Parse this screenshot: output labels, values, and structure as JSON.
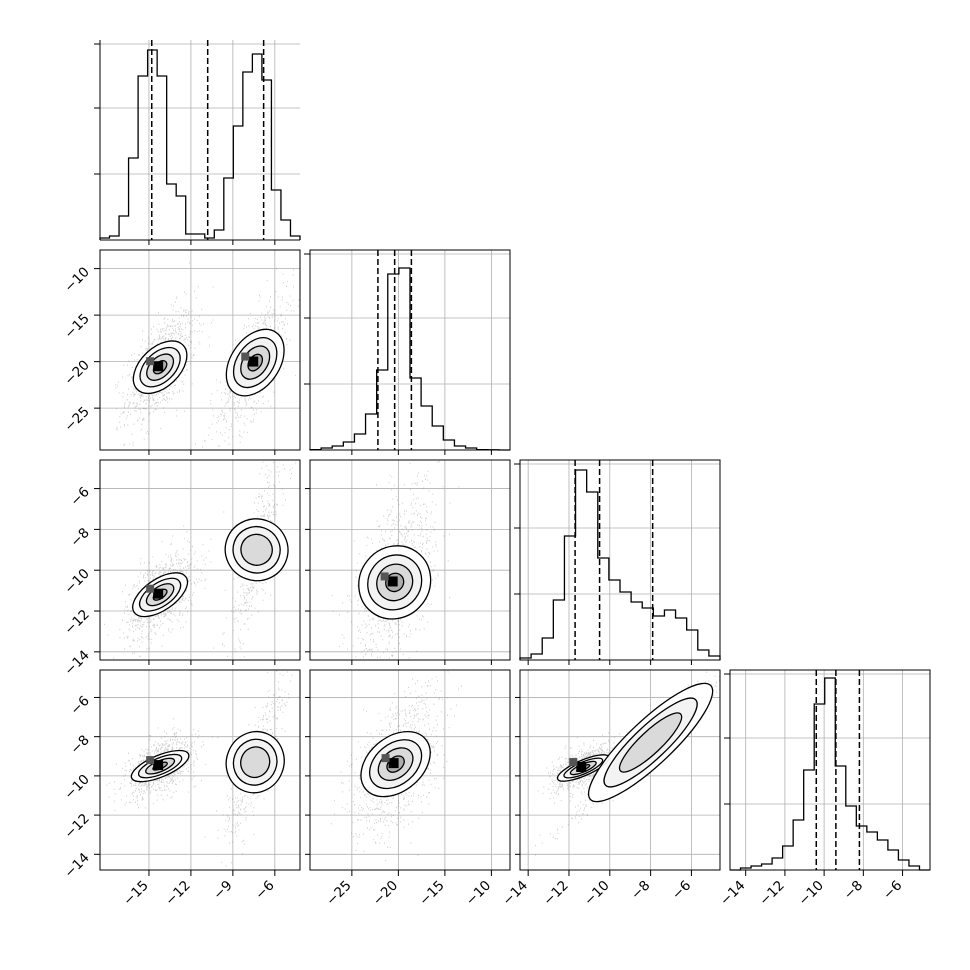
{
  "chart_data": {
    "type": "corner",
    "grid": true,
    "quantiles_shown": "dashed lines on 1D histograms",
    "parameters": [
      {
        "range": [
          -18.5,
          -4.2
        ],
        "ticks": [
          -15,
          -12,
          -9,
          -6
        ],
        "tick_labels": [
          "−15",
          "−12",
          "−9",
          "−6"
        ],
        "quantile_lines": [
          -14.8,
          -10.8,
          -6.8
        ],
        "hist": [
          0.01,
          0.02,
          0.12,
          0.41,
          0.82,
          0.95,
          0.82,
          0.28,
          0.22,
          0.03,
          0.03,
          0.01,
          0.05,
          0.31,
          0.57,
          0.84,
          0.93,
          0.8,
          0.25,
          0.1,
          0.02
        ]
      },
      {
        "range": [
          -29.5,
          -8.0
        ],
        "ticks": [
          -25,
          -20,
          -15,
          -10
        ],
        "tick_labels": [
          "−25",
          "−20",
          "−15",
          "−10"
        ],
        "quantile_lines": [
          -22.2,
          -20.4,
          -18.6
        ],
        "hist": [
          0.002,
          0.01,
          0.02,
          0.04,
          0.08,
          0.18,
          0.4,
          0.88,
          0.91,
          0.36,
          0.22,
          0.12,
          0.05,
          0.02,
          0.01,
          0.002,
          0.001,
          0.0
        ]
      },
      {
        "range": [
          -14.4,
          -4.6
        ],
        "ticks": [
          -14,
          -12,
          -10,
          -8,
          -6
        ],
        "tick_labels": [
          "−14",
          "−12",
          "−10",
          "−8",
          "−6"
        ],
        "quantile_lines": [
          -11.7,
          -10.5,
          -7.9
        ],
        "hist": [
          0.01,
          0.03,
          0.11,
          0.3,
          0.62,
          0.95,
          0.84,
          0.51,
          0.4,
          0.34,
          0.29,
          0.26,
          0.22,
          0.25,
          0.21,
          0.15,
          0.05,
          0.02
        ]
      },
      {
        "range": [
          -14.8,
          -4.6
        ],
        "ticks": [
          -14,
          -12,
          -10,
          -8,
          -6
        ],
        "tick_labels": [
          "−14",
          "−12",
          "−10",
          "−8",
          "−6"
        ],
        "quantile_lines": [
          -10.4,
          -9.4,
          -8.2
        ],
        "hist": [
          0.0,
          0.01,
          0.02,
          0.03,
          0.06,
          0.12,
          0.25,
          0.5,
          0.83,
          0.96,
          0.52,
          0.32,
          0.22,
          0.19,
          0.15,
          0.1,
          0.05,
          0.02,
          0.0
        ]
      }
    ],
    "y_tick_labels_2d": {
      "1": [
        "−10",
        "−15",
        "−20",
        "−25"
      ],
      "2": [
        "−6",
        "−8",
        "−10",
        "−12",
        "−14"
      ],
      "3": [
        "−6",
        "−8",
        "−10",
        "−12",
        "−14"
      ]
    },
    "clusters_2d": [
      {
        "row": 1,
        "col": 0,
        "blobs": [
          {
            "cx": -14.2,
            "cy": -20.6,
            "sx": 1.0,
            "sy": 2.4,
            "rho": 0.6,
            "w": 1.0
          },
          {
            "cx": -7.4,
            "cy": -20.1,
            "sx": 1.1,
            "sy": 3.2,
            "rho": 0.75,
            "w": 0.7
          }
        ]
      },
      {
        "row": 2,
        "col": 0,
        "blobs": [
          {
            "cx": -14.2,
            "cy": -11.2,
            "sx": 1.0,
            "sy": 0.85,
            "rho": 0.55,
            "w": 1.0
          },
          {
            "cx": -7.3,
            "cy": -9.0,
            "sx": 0.9,
            "sy": 2.0,
            "rho": 0.85,
            "w": 0.45
          }
        ]
      },
      {
        "row": 2,
        "col": 1,
        "blobs": [
          {
            "cx": -20.4,
            "cy": -10.6,
            "sx": 1.8,
            "sy": 1.9,
            "rho": 0.55,
            "w": 1.0
          }
        ]
      },
      {
        "row": 3,
        "col": 0,
        "blobs": [
          {
            "cx": -14.2,
            "cy": -9.5,
            "sx": 1.0,
            "sy": 0.6,
            "rho": 0.5,
            "w": 1.0
          },
          {
            "cx": -7.4,
            "cy": -9.3,
            "sx": 0.9,
            "sy": 1.9,
            "rho": 0.85,
            "w": 0.45
          }
        ]
      },
      {
        "row": 3,
        "col": 1,
        "blobs": [
          {
            "cx": -20.3,
            "cy": -9.4,
            "sx": 1.9,
            "sy": 1.5,
            "rho": 0.5,
            "w": 1.0
          }
        ]
      },
      {
        "row": 3,
        "col": 2,
        "blobs": [
          {
            "cx": -11.3,
            "cy": -9.6,
            "sx": 0.6,
            "sy": 0.45,
            "rho": 0.6,
            "w": 1.0
          },
          {
            "cx": -8.0,
            "cy": -8.3,
            "sx": 1.6,
            "sy": 1.6,
            "rho": 0.985,
            "w": 0.55
          }
        ]
      }
    ]
  }
}
